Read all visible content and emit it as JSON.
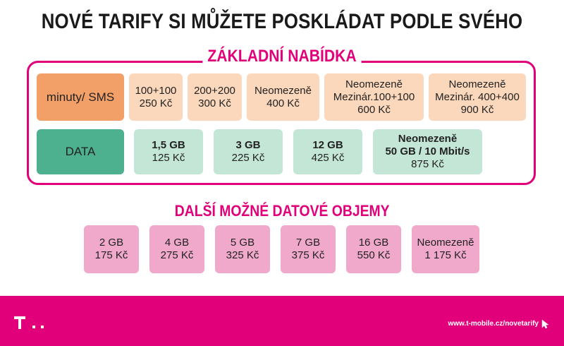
{
  "title": "NOVÉ TARIFY SI MŮŽETE POSKLÁDAT PODLE SVÉHO",
  "basic_offer": {
    "label": "ZÁKLADNÍ NABÍDKA",
    "minutes_sms": {
      "category": "minuty/ SMS",
      "items": [
        {
          "name": "100+100",
          "price": "250 Kč"
        },
        {
          "name": "200+200",
          "price": "300 Kč"
        },
        {
          "name": "Neomezeně",
          "price": "400 Kč"
        },
        {
          "name_line1": "Neomezeně",
          "name_line2": "Mezinár.100+100",
          "price": "600 Kč"
        },
        {
          "name_line1": "Neomezeně",
          "name_line2": "Mezinár. 400+400",
          "price": "900 Kč"
        }
      ]
    },
    "data": {
      "category": "DATA",
      "items": [
        {
          "name": "1,5 GB",
          "price": "125 Kč"
        },
        {
          "name": "3 GB",
          "price": "225 Kč"
        },
        {
          "name": "12 GB",
          "price": "425 Kč"
        },
        {
          "name_line1": "Neomezeně",
          "name_line2": "50 GB / 10 Mbit/s",
          "price": "875 Kč"
        }
      ]
    }
  },
  "extra_data": {
    "title": "DALŠÍ MOŽNÉ DATOVÉ OBJEMY",
    "items": [
      {
        "name": "2 GB",
        "price": "175 Kč"
      },
      {
        "name": "4 GB",
        "price": "275 Kč"
      },
      {
        "name": "5 GB",
        "price": "325 Kč"
      },
      {
        "name": "7 GB",
        "price": "375 Kč"
      },
      {
        "name": "16 GB",
        "price": "550 Kč"
      },
      {
        "name": "Neomezeně",
        "price": "1 175 Kč"
      }
    ]
  },
  "footer": {
    "url": "www.t-mobile.cz/novetarify",
    "logo_icon": "telekom-t-logo-icon",
    "cursor_icon": "mouse-pointer-icon",
    "brand_color": "#e2007a"
  }
}
